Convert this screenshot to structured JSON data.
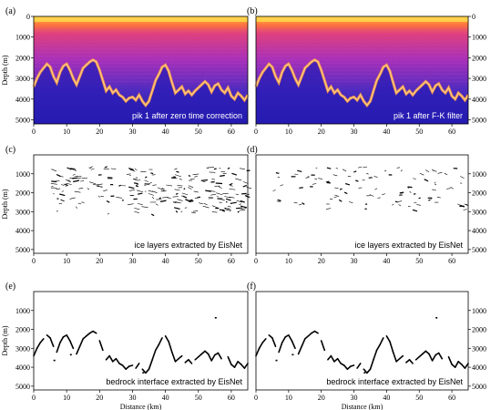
{
  "figure": {
    "xlabel": "Distance (km)",
    "ylabel": "Depth (m)",
    "x_ticks": [
      "0",
      "10",
      "20",
      "30",
      "40",
      "50",
      "60"
    ],
    "y_ticks": [
      "0",
      "1000",
      "2000",
      "3000",
      "4000",
      "5000"
    ]
  },
  "panels": [
    {
      "id": "a",
      "label": "(a)",
      "caption": "pik 1 after zero time correction",
      "kind": "radar",
      "left_axis": true
    },
    {
      "id": "b",
      "label": "(b)",
      "caption": "pik 1 after F-K filter",
      "kind": "radar",
      "left_axis": false
    },
    {
      "id": "c",
      "label": "(c)",
      "caption": "ice layers extracted by EisNet",
      "kind": "layers",
      "left_axis": true
    },
    {
      "id": "d",
      "label": "(d)",
      "caption": "ice layers extracted by EisNet",
      "kind": "layers",
      "left_axis": false
    },
    {
      "id": "e",
      "label": "(e)",
      "caption": "bedrock interface extracted by EisNet",
      "kind": "bedrock",
      "left_axis": true
    },
    {
      "id": "f",
      "label": "(f)",
      "caption": "bedrock interface extracted by EisNet",
      "kind": "bedrock",
      "left_axis": false
    }
  ],
  "chart_data": {
    "type": "line",
    "title": "",
    "xlabel": "Distance (km)",
    "ylabel": "Depth (m)",
    "xlim": [
      0,
      65
    ],
    "ylim": [
      5200,
      0
    ],
    "series": [
      {
        "x": [
          0,
          1,
          2,
          3,
          4,
          5,
          6,
          7,
          8,
          9,
          10,
          11,
          12,
          13,
          14,
          15,
          16,
          17,
          18,
          19,
          20,
          21,
          22,
          23,
          24,
          25,
          26,
          27,
          28,
          29,
          30,
          31,
          32,
          33,
          34,
          35,
          36,
          37,
          38,
          39,
          40,
          41,
          42,
          43,
          44,
          45,
          46,
          47,
          48,
          49,
          50,
          51,
          52,
          53,
          54,
          55,
          56,
          57,
          58,
          59,
          60,
          61,
          62,
          63,
          64,
          65
        ],
        "y": [
          3400,
          3000,
          2700,
          2500,
          2300,
          2450,
          2900,
          3200,
          2700,
          2400,
          2300,
          2600,
          3000,
          3300,
          2900,
          2500,
          2350,
          2200,
          2100,
          2200,
          2600,
          3100,
          3600,
          3400,
          3700,
          3550,
          3800,
          3900,
          4100,
          3950,
          3900,
          4050,
          3800,
          4100,
          4300,
          4100,
          3600,
          3100,
          2800,
          2450,
          2350,
          2650,
          3200,
          3700,
          3550,
          3400,
          3750,
          3600,
          3800,
          3600,
          3450,
          3300,
          3150,
          3300,
          3650,
          3350,
          3250,
          3550,
          3700,
          3450,
          3850,
          4000,
          3700,
          3850,
          4050,
          3800
        ]
      }
    ]
  }
}
